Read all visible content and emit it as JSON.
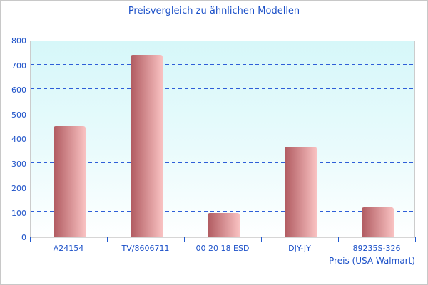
{
  "window": {
    "background": "#ffffff",
    "border_color": "#c8c8c8"
  },
  "chart_data": {
    "type": "bar",
    "title": "Preisvergleich zu ähnlichen Modellen",
    "xlabel": "Preis (USA Walmart)",
    "ylabel": "",
    "categories": [
      "A24154",
      "TV/8606711",
      "00 20 18 ESD",
      "DJY-JY",
      "89235S-326"
    ],
    "values": [
      450,
      740,
      95,
      365,
      120
    ],
    "ylim": [
      0,
      800
    ],
    "ytick_step": 100,
    "grid": true,
    "legend_position": "none",
    "colors": {
      "title_text": "#1b50c8",
      "axis_text": "#1b50c8",
      "gridline": "#2e5ed8",
      "bar_gradient_left": "#b05a60",
      "bar_gradient_right": "#f9c2c2",
      "plot_bg_top": "#d6f7f9",
      "plot_bg_bottom": "#ffffff",
      "axis_line": "#d6d6d6",
      "tick_mark": "#2059cf"
    }
  }
}
